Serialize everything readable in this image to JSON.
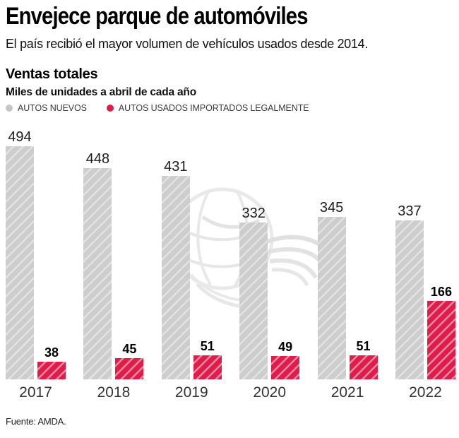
{
  "header": {
    "title": "Envejece parque de automóviles",
    "subtitle": "El país recibió el mayor volumen de vehículos usados desde 2014."
  },
  "chart": {
    "heading": "Ventas totales",
    "units_label": "Miles de unidades a abril de cada año",
    "legend": [
      {
        "label": "AUTOS NUEVOS",
        "color": "#c6c6c6"
      },
      {
        "label": "AUTOS USADOS IMPORTADOS LEGALMENTE",
        "color": "#de1c49"
      }
    ]
  },
  "chart_data": {
    "type": "bar",
    "title": "Ventas totales",
    "ylabel": "Miles de unidades a abril de cada año",
    "categories": [
      "2017",
      "2018",
      "2019",
      "2020",
      "2021",
      "2022"
    ],
    "series": [
      {
        "name": "AUTOS NUEVOS",
        "values": [
          494,
          448,
          431,
          332,
          345,
          337
        ],
        "color": "#cdcdcd",
        "hatch_color": "#e2e2e2",
        "hatch": "diagonal-forward"
      },
      {
        "name": "AUTOS USADOS IMPORTADOS LEGALMENTE",
        "values": [
          38,
          45,
          51,
          49,
          51,
          166
        ],
        "color": "#e01c4a",
        "hatch_color": "#ee8da2",
        "hatch": "diagonal-forward"
      }
    ],
    "ylim": [
      0,
      494
    ],
    "grid": false,
    "legend_position": "top",
    "value_labels": true
  },
  "icons": {
    "legend_marker": "filled-circle",
    "watermark": "winged-globe-newspaper-logo"
  },
  "footer": {
    "source": "Fuente: AMDA."
  }
}
